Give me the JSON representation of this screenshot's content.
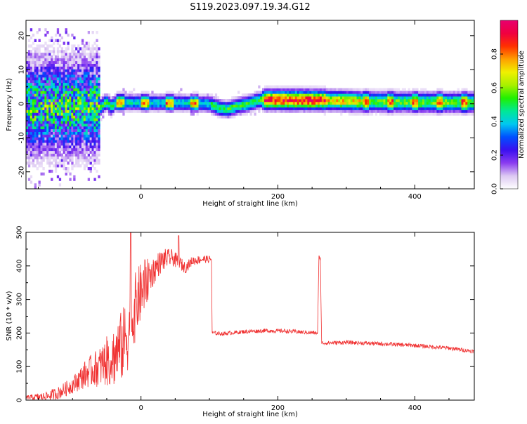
{
  "title": "S119.2023.097.19.34.G12",
  "chart_data": [
    {
      "type": "heatmap",
      "name": "spectrogram",
      "xlabel": "Height of straight line (km)",
      "ylabel": "Frequency (Hz)",
      "xlim": [
        -168,
        487
      ],
      "ylim": [
        -25,
        24.5
      ],
      "xticks": [
        0,
        200,
        400
      ],
      "yticks": [
        -20,
        -10,
        0,
        10,
        20
      ],
      "grid": false,
      "colorbar": {
        "label": "Normalized spectral amplitude",
        "range": [
          0,
          1
        ],
        "ticks": [
          "0.0",
          "0.2",
          "0.4",
          "0.6",
          "0.8"
        ],
        "colors": [
          "#ffffff",
          "#dcc8f2",
          "#8a3cf0",
          "#3a10f0",
          "#0050ff",
          "#00c8f0",
          "#00e896",
          "#20f000",
          "#a8f000",
          "#f0f000",
          "#ffa000",
          "#ff3000",
          "#f00040",
          "#e8006e"
        ]
      },
      "ridge": [
        [
          -60,
          -1.2
        ],
        [
          -52,
          0.2
        ],
        [
          -45,
          -1.2
        ],
        [
          -38,
          0.0
        ],
        [
          -30,
          0.1
        ],
        [
          0,
          0.0
        ],
        [
          40,
          -0.1
        ],
        [
          80,
          -0.2
        ],
        [
          100,
          -0.5
        ],
        [
          112,
          -1.5
        ],
        [
          125,
          -2.0
        ],
        [
          140,
          -1.0
        ],
        [
          155,
          -0.4
        ],
        [
          168,
          0.5
        ],
        [
          175,
          0.8
        ],
        [
          195,
          0.8
        ],
        [
          260,
          0.7
        ],
        [
          320,
          0.3
        ],
        [
          400,
          0.1
        ],
        [
          487,
          0.0
        ]
      ]
    },
    {
      "type": "line",
      "name": "snr",
      "xlabel": "Height of straight line (km)",
      "ylabel": "SNR (10 * v/v)",
      "xlim": [
        -168,
        487
      ],
      "ylim": [
        0,
        500
      ],
      "xticks": [
        0,
        200,
        400
      ],
      "yticks": [
        0,
        100,
        200,
        300,
        400,
        500
      ],
      "grid": false,
      "color": "#f03232",
      "envelope": [
        [
          -168,
          8
        ],
        [
          -140,
          10
        ],
        [
          -120,
          22
        ],
        [
          -100,
          45
        ],
        [
          -80,
          80
        ],
        [
          -60,
          100
        ],
        [
          -40,
          130
        ],
        [
          -25,
          170
        ],
        [
          -15,
          230
        ],
        [
          -5,
          300
        ],
        [
          5,
          340
        ],
        [
          15,
          375
        ],
        [
          25,
          405
        ],
        [
          35,
          420
        ],
        [
          45,
          425
        ],
        [
          55,
          410
        ],
        [
          65,
          395
        ],
        [
          75,
          415
        ],
        [
          90,
          420
        ],
        [
          103,
          420
        ],
        [
          104,
          200
        ],
        [
          120,
          198
        ],
        [
          150,
          204
        ],
        [
          180,
          207
        ],
        [
          210,
          206
        ],
        [
          240,
          202
        ],
        [
          258,
          200
        ],
        [
          260,
          425
        ],
        [
          262,
          425
        ],
        [
          264,
          170
        ],
        [
          300,
          172
        ],
        [
          350,
          168
        ],
        [
          400,
          163
        ],
        [
          450,
          155
        ],
        [
          487,
          145
        ]
      ],
      "noise": [
        [
          -168,
          6
        ],
        [
          -100,
          25
        ],
        [
          -60,
          60
        ],
        [
          -40,
          90
        ],
        [
          -20,
          120
        ],
        [
          0,
          90
        ],
        [
          20,
          40
        ],
        [
          45,
          25
        ],
        [
          70,
          15
        ],
        [
          103,
          10
        ],
        [
          104,
          6
        ],
        [
          258,
          6
        ],
        [
          264,
          6
        ],
        [
          487,
          6
        ]
      ]
    }
  ]
}
